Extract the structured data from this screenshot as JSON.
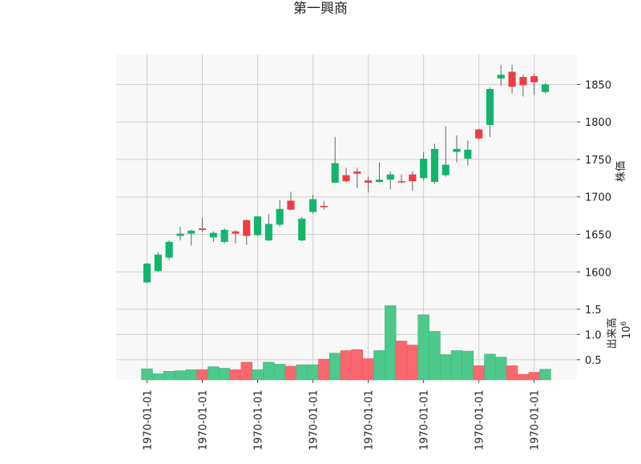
{
  "chart_data": {
    "type": "candlestick",
    "title": "第一興商",
    "price_panel": {
      "ylabel": "株価",
      "ylim": [
        1565,
        1890
      ],
      "yticks": [
        1600,
        1650,
        1700,
        1750,
        1800,
        1850
      ],
      "grid": true
    },
    "volume_panel": {
      "ylabel": "出来高",
      "scale_label": "10^6",
      "ylim": [
        0.1,
        1.72
      ],
      "yticks": [
        0.5,
        1.0,
        1.5
      ],
      "grid": true
    },
    "x_tick_labels": [
      "1970-01-01",
      "1970-01-01",
      "1970-01-01",
      "1970-01-01",
      "1970-01-01",
      "1970-01-01",
      "1970-01-01",
      "1970-01-01"
    ],
    "candles": [
      {
        "open": 1586,
        "high": 1612,
        "low": 1585,
        "close": 1611,
        "volume": 0.32
      },
      {
        "open": 1601,
        "high": 1626,
        "low": 1600,
        "close": 1623,
        "volume": 0.22
      },
      {
        "open": 1619,
        "high": 1642,
        "low": 1616,
        "close": 1640,
        "volume": 0.27
      },
      {
        "open": 1648,
        "high": 1660,
        "low": 1642,
        "close": 1651,
        "volume": 0.28
      },
      {
        "open": 1651,
        "high": 1656,
        "low": 1635,
        "close": 1655,
        "volume": 0.3
      },
      {
        "open": 1658,
        "high": 1672,
        "low": 1653,
        "close": 1656,
        "volume": 0.3
      },
      {
        "open": 1646,
        "high": 1654,
        "low": 1640,
        "close": 1652,
        "volume": 0.36
      },
      {
        "open": 1640,
        "high": 1658,
        "low": 1638,
        "close": 1656,
        "volume": 0.33
      },
      {
        "open": 1654,
        "high": 1656,
        "low": 1638,
        "close": 1651,
        "volume": 0.3
      },
      {
        "open": 1669,
        "high": 1670,
        "low": 1636,
        "close": 1648,
        "volume": 0.45
      },
      {
        "open": 1649,
        "high": 1675,
        "low": 1648,
        "close": 1674,
        "volume": 0.3
      },
      {
        "open": 1642,
        "high": 1677,
        "low": 1641,
        "close": 1664,
        "volume": 0.45
      },
      {
        "open": 1663,
        "high": 1696,
        "low": 1660,
        "close": 1684,
        "volume": 0.41
      },
      {
        "open": 1695,
        "high": 1707,
        "low": 1682,
        "close": 1683,
        "volume": 0.37
      },
      {
        "open": 1642,
        "high": 1673,
        "low": 1641,
        "close": 1671,
        "volume": 0.4
      },
      {
        "open": 1680,
        "high": 1703,
        "low": 1678,
        "close": 1697,
        "volume": 0.4
      },
      {
        "open": 1688,
        "high": 1694,
        "low": 1683,
        "close": 1687,
        "volume": 0.51
      },
      {
        "open": 1719,
        "high": 1780,
        "low": 1719,
        "close": 1745,
        "volume": 0.63
      },
      {
        "open": 1729,
        "high": 1739,
        "low": 1720,
        "close": 1721,
        "volume": 0.68
      },
      {
        "open": 1734,
        "high": 1739,
        "low": 1712,
        "close": 1731,
        "volume": 0.7
      },
      {
        "open": 1722,
        "high": 1727,
        "low": 1706,
        "close": 1719,
        "volume": 0.52
      },
      {
        "open": 1720,
        "high": 1746,
        "low": 1719,
        "close": 1723,
        "volume": 0.68
      },
      {
        "open": 1723,
        "high": 1734,
        "low": 1710,
        "close": 1730,
        "volume": 1.57
      },
      {
        "open": 1721,
        "high": 1730,
        "low": 1719,
        "close": 1720,
        "volume": 0.87
      },
      {
        "open": 1730,
        "high": 1734,
        "low": 1708,
        "close": 1721,
        "volume": 0.79
      },
      {
        "open": 1725,
        "high": 1760,
        "low": 1722,
        "close": 1751,
        "volume": 1.39
      },
      {
        "open": 1720,
        "high": 1771,
        "low": 1717,
        "close": 1764,
        "volume": 1.06
      },
      {
        "open": 1729,
        "high": 1794,
        "low": 1727,
        "close": 1743,
        "volume": 0.6
      },
      {
        "open": 1760,
        "high": 1782,
        "low": 1746,
        "close": 1764,
        "volume": 0.68
      },
      {
        "open": 1751,
        "high": 1775,
        "low": 1742,
        "close": 1763,
        "volume": 0.67
      },
      {
        "open": 1790,
        "high": 1791,
        "low": 1776,
        "close": 1778,
        "volume": 0.38
      },
      {
        "open": 1796,
        "high": 1846,
        "low": 1780,
        "close": 1844,
        "volume": 0.61
      },
      {
        "open": 1858,
        "high": 1876,
        "low": 1848,
        "close": 1863,
        "volume": 0.55
      },
      {
        "open": 1867,
        "high": 1876,
        "low": 1838,
        "close": 1847,
        "volume": 0.38
      },
      {
        "open": 1860,
        "high": 1863,
        "low": 1834,
        "close": 1849,
        "volume": 0.21
      },
      {
        "open": 1861,
        "high": 1864,
        "low": 1836,
        "close": 1853,
        "volume": 0.25
      },
      {
        "open": 1840,
        "high": 1852,
        "low": 1838,
        "close": 1850,
        "volume": 0.31
      }
    ],
    "colors": {
      "up": "#12b56c",
      "down": "#f03b41",
      "up_volume": "#4cc98b",
      "down_volume": "#f8686e",
      "wick": "#666666",
      "grid": "#d0d0d0",
      "panel_bg": "#f8f8f8"
    }
  }
}
